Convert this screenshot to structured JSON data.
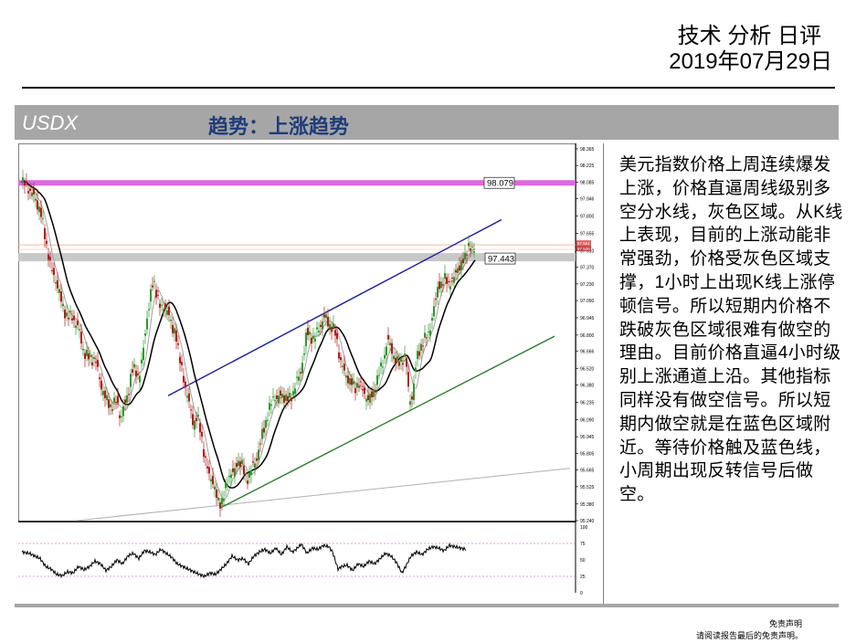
{
  "header": {
    "title": "技术 分析 日评",
    "date": "2019年07月29日"
  },
  "banner": {
    "symbol": "USDX",
    "trend": "趋势：上涨趋势"
  },
  "analysis_text": "美元指数价格上周连续爆发上涨，价格直逼周线级别多空分水线，灰色区域。从K线上表现，目前的上涨动能非常强劲，价格受灰色区域支撑，1小时上出现K线上涨停顿信号。所以短期内价格不跌破灰色区域很难有做空的理由。目前价格直逼4小时级别上涨通道上沿。其他指标同样没有做空信号。所以短期内做空就是在蓝色区域附近。等待价格触及蓝色线，小周期出现反转信号后做空。",
  "disclaimer": {
    "title": "免责声明",
    "body": "请阅读报告最后的免责声明。"
  },
  "colors": {
    "bull": "#2e9a2e",
    "bear": "#b81c1c",
    "resistance_line": "#e066e0",
    "gray_zone": "#c8c8c8",
    "channel_upper": "#1a1a9a",
    "channel_lower": "#2a7a2a",
    "ma_slow": "#000000",
    "ma_fast": "#a0a0a0",
    "banner_bg": "#a6a6a6",
    "trend_text": "#1f3c78"
  },
  "chart_data": {
    "type": "candlestick",
    "ylim": [
      95.24,
      98.365
    ],
    "yticks": [
      "98.365",
      "98.225",
      "98.085",
      "97.946",
      "97.800",
      "97.655",
      "97.510",
      "97.370",
      "97.230",
      "97.090",
      "96.945",
      "96.800",
      "96.666",
      "96.520",
      "96.380",
      "96.235",
      "96.090",
      "95.945",
      "95.805",
      "95.665",
      "95.525",
      "95.380",
      "95.240"
    ],
    "resistance_label": "98.079",
    "resistance_level": 98.079,
    "support_label": "97.443",
    "support_level": 97.443,
    "last_price_labels": [
      "97.581",
      "97.526"
    ],
    "last_price": 97.55,
    "channel_upper": {
      "x1": 160,
      "y1": 96.29,
      "x2": 525,
      "y2": 97.77
    },
    "channel_lower": {
      "x1": 218,
      "y1": 95.35,
      "x2": 583,
      "y2": 96.79
    },
    "long_trend": {
      "x1": 60,
      "y1": 95.24,
      "x2": 600,
      "y2": 95.68
    },
    "close_path": [
      [
        0,
        98.08
      ],
      [
        6,
        98.05
      ],
      [
        14,
        97.95
      ],
      [
        20,
        97.85
      ],
      [
        26,
        97.6
      ],
      [
        32,
        97.35
      ],
      [
        38,
        97.25
      ],
      [
        44,
        97.05
      ],
      [
        50,
        96.95
      ],
      [
        56,
        96.95
      ],
      [
        62,
        96.85
      ],
      [
        68,
        96.65
      ],
      [
        74,
        96.6
      ],
      [
        80,
        96.6
      ],
      [
        86,
        96.4
      ],
      [
        92,
        96.25
      ],
      [
        98,
        96.2
      ],
      [
        104,
        96.25
      ],
      [
        108,
        96.1
      ],
      [
        112,
        96.2
      ],
      [
        116,
        96.3
      ],
      [
        120,
        96.5
      ],
      [
        124,
        96.5
      ],
      [
        128,
        96.45
      ],
      [
        132,
        96.6
      ],
      [
        136,
        96.9
      ],
      [
        140,
        97.1
      ],
      [
        144,
        97.25
      ],
      [
        148,
        97.15
      ],
      [
        152,
        97.0
      ],
      [
        156,
        97.05
      ],
      [
        160,
        97.0
      ],
      [
        164,
        96.85
      ],
      [
        168,
        96.85
      ],
      [
        172,
        96.6
      ],
      [
        176,
        96.5
      ],
      [
        180,
        96.3
      ],
      [
        184,
        96.2
      ],
      [
        188,
        96.05
      ],
      [
        192,
        96.1
      ],
      [
        196,
        96.0
      ],
      [
        200,
        95.75
      ],
      [
        204,
        95.65
      ],
      [
        208,
        95.6
      ],
      [
        212,
        95.45
      ],
      [
        216,
        95.4
      ],
      [
        220,
        95.4
      ],
      [
        224,
        95.55
      ],
      [
        228,
        95.65
      ],
      [
        232,
        95.62
      ],
      [
        236,
        95.75
      ],
      [
        240,
        95.72
      ],
      [
        244,
        95.62
      ],
      [
        248,
        95.6
      ],
      [
        252,
        95.68
      ],
      [
        256,
        95.75
      ],
      [
        260,
        95.85
      ],
      [
        264,
        96.0
      ],
      [
        268,
        96.1
      ],
      [
        272,
        96.2
      ],
      [
        276,
        96.3
      ],
      [
        280,
        96.25
      ],
      [
        284,
        96.3
      ],
      [
        288,
        96.28
      ],
      [
        292,
        96.25
      ],
      [
        296,
        96.3
      ],
      [
        300,
        96.4
      ],
      [
        304,
        96.45
      ],
      [
        308,
        96.62
      ],
      [
        312,
        96.82
      ],
      [
        316,
        96.8
      ],
      [
        320,
        96.75
      ],
      [
        324,
        96.85
      ],
      [
        328,
        96.9
      ],
      [
        332,
        96.95
      ],
      [
        336,
        96.9
      ],
      [
        340,
        96.85
      ],
      [
        344,
        96.8
      ],
      [
        348,
        96.6
      ],
      [
        352,
        96.5
      ],
      [
        356,
        96.45
      ],
      [
        360,
        96.4
      ],
      [
        364,
        96.35
      ],
      [
        368,
        96.4
      ],
      [
        372,
        96.35
      ],
      [
        376,
        96.3
      ],
      [
        380,
        96.25
      ],
      [
        384,
        96.3
      ],
      [
        388,
        96.4
      ],
      [
        392,
        96.5
      ],
      [
        396,
        96.6
      ],
      [
        400,
        96.75
      ],
      [
        404,
        96.7
      ],
      [
        408,
        96.6
      ],
      [
        412,
        96.55
      ],
      [
        416,
        96.6
      ],
      [
        420,
        96.62
      ],
      [
        424,
        96.25
      ],
      [
        428,
        96.3
      ],
      [
        432,
        96.6
      ],
      [
        436,
        96.7
      ],
      [
        440,
        96.75
      ],
      [
        444,
        96.8
      ],
      [
        448,
        96.9
      ],
      [
        452,
        97.05
      ],
      [
        456,
        97.25
      ],
      [
        460,
        97.2
      ],
      [
        464,
        97.3
      ],
      [
        468,
        97.22
      ],
      [
        472,
        97.25
      ],
      [
        476,
        97.38
      ],
      [
        480,
        97.35
      ],
      [
        484,
        97.45
      ],
      [
        488,
        97.55
      ],
      [
        492,
        97.5
      ],
      [
        496,
        97.55
      ]
    ],
    "oscillator": {
      "ylim": [
        0,
        100
      ],
      "yticks": [
        "100",
        "75",
        "50",
        "25",
        "0"
      ],
      "levels": [
        75,
        25
      ],
      "path": [
        [
          0,
          62
        ],
        [
          8,
          60
        ],
        [
          14,
          56
        ],
        [
          20,
          52
        ],
        [
          26,
          40
        ],
        [
          32,
          36
        ],
        [
          38,
          28
        ],
        [
          44,
          26
        ],
        [
          50,
          32
        ],
        [
          56,
          30
        ],
        [
          62,
          40
        ],
        [
          68,
          35
        ],
        [
          74,
          40
        ],
        [
          80,
          48
        ],
        [
          86,
          44
        ],
        [
          92,
          34
        ],
        [
          98,
          40
        ],
        [
          104,
          50
        ],
        [
          110,
          44
        ],
        [
          116,
          56
        ],
        [
          122,
          60
        ],
        [
          128,
          52
        ],
        [
          134,
          64
        ],
        [
          140,
          62
        ],
        [
          146,
          58
        ],
        [
          152,
          66
        ],
        [
          158,
          60
        ],
        [
          164,
          54
        ],
        [
          170,
          44
        ],
        [
          176,
          40
        ],
        [
          182,
          36
        ],
        [
          188,
          32
        ],
        [
          194,
          28
        ],
        [
          200,
          25
        ],
        [
          206,
          30
        ],
        [
          212,
          28
        ],
        [
          218,
          36
        ],
        [
          224,
          44
        ],
        [
          230,
          56
        ],
        [
          236,
          50
        ],
        [
          242,
          52
        ],
        [
          248,
          44
        ],
        [
          254,
          56
        ],
        [
          260,
          62
        ],
        [
          266,
          66
        ],
        [
          272,
          60
        ],
        [
          278,
          68
        ],
        [
          284,
          58
        ],
        [
          290,
          70
        ],
        [
          296,
          62
        ],
        [
          300,
          66
        ],
        [
          306,
          74
        ],
        [
          312,
          60
        ],
        [
          318,
          68
        ],
        [
          324,
          66
        ],
        [
          330,
          72
        ],
        [
          336,
          70
        ],
        [
          340,
          62
        ],
        [
          346,
          36
        ],
        [
          350,
          40
        ],
        [
          356,
          42
        ],
        [
          362,
          34
        ],
        [
          368,
          44
        ],
        [
          374,
          40
        ],
        [
          380,
          48
        ],
        [
          386,
          44
        ],
        [
          392,
          52
        ],
        [
          398,
          60
        ],
        [
          404,
          56
        ],
        [
          410,
          46
        ],
        [
          416,
          30
        ],
        [
          420,
          40
        ],
        [
          426,
          56
        ],
        [
          432,
          62
        ],
        [
          438,
          58
        ],
        [
          444,
          66
        ],
        [
          450,
          70
        ],
        [
          456,
          68
        ],
        [
          462,
          64
        ],
        [
          468,
          72
        ],
        [
          474,
          70
        ],
        [
          480,
          68
        ],
        [
          486,
          66
        ]
      ]
    }
  }
}
